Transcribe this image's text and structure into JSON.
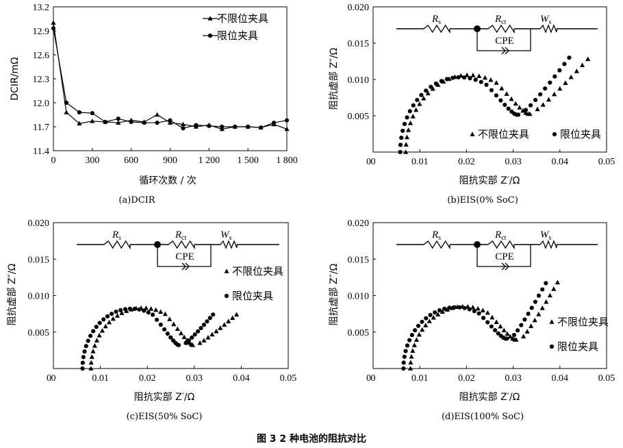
{
  "figure_caption": "图 3   2 种电池的阻抗对比",
  "chart_data": [
    {
      "id": "a",
      "type": "line",
      "caption": "(a)DCIR",
      "xlabel": "循环次数 / 次",
      "ylabel": "DCIR/mΩ",
      "xlim": [
        0,
        1800
      ],
      "ylim": [
        11.4,
        13.2
      ],
      "xticks": [
        0,
        300,
        600,
        900,
        1200,
        1500,
        1800
      ],
      "xtick_labels": [
        "0",
        "300",
        "600",
        "900",
        "1 200",
        "1 500",
        "1 800"
      ],
      "yticks": [
        11.4,
        11.7,
        12.0,
        12.3,
        12.6,
        12.9,
        13.2
      ],
      "ytick_labels": [
        "11.4",
        "11.7",
        "12.0",
        "12.3",
        "12.6",
        "12.9",
        "13.2"
      ],
      "legend_position": "top-right",
      "series": [
        {
          "name": "不限位夹具",
          "marker": "triangle",
          "x": [
            0,
            100,
            200,
            300,
            400,
            500,
            600,
            700,
            800,
            900,
            1000,
            1100,
            1200,
            1300,
            1400,
            1500,
            1600,
            1700,
            1800
          ],
          "y": [
            13.0,
            11.88,
            11.74,
            11.77,
            11.76,
            11.75,
            11.78,
            11.76,
            11.85,
            11.75,
            11.73,
            11.7,
            11.72,
            11.67,
            11.7,
            11.7,
            11.69,
            11.73,
            11.67
          ]
        },
        {
          "name": "限位夹具",
          "marker": "circle",
          "x": [
            0,
            100,
            200,
            300,
            400,
            500,
            600,
            700,
            800,
            900,
            1000,
            1100,
            1200,
            1300,
            1400,
            1500,
            1600,
            1700,
            1800
          ],
          "y": [
            12.93,
            12.0,
            11.88,
            11.87,
            11.76,
            11.8,
            11.76,
            11.75,
            11.75,
            11.78,
            11.68,
            11.72,
            11.71,
            11.7,
            11.7,
            11.7,
            11.69,
            11.75,
            11.78
          ]
        }
      ]
    },
    {
      "id": "b",
      "type": "scatter",
      "caption": "(b)EIS(0% SoC)",
      "xlabel": "阻抗实部 Z′/Ω",
      "ylabel": "阻抗虚部 Z″/Ω",
      "xlim": [
        0,
        0.05
      ],
      "ylim": [
        0,
        0.02
      ],
      "xticks": [
        0,
        0.01,
        0.02,
        0.03,
        0.04,
        0.05
      ],
      "xtick_labels": [
        "0",
        "0.01",
        "0.02",
        "0.03",
        "0.04",
        "0.05"
      ],
      "yticks": [
        0.005,
        0.01,
        0.015,
        0.02
      ],
      "ytick_labels": [
        "0.005",
        "0.010",
        "0.015",
        "0.020"
      ],
      "legend_position": "bottom-right",
      "circuit": {
        "rs": "R",
        "rs_sub": "s",
        "rct": "R",
        "rct_sub": "ct",
        "w": "W",
        "w_sub": "s",
        "cpe": "CPE"
      },
      "series": [
        {
          "name": "不限位夹具",
          "marker": "triangle",
          "x0": 0.007,
          "x1": 0.034,
          "peak": 0.0106,
          "turn": 0.0059,
          "tail_end": [
            0.046,
            0.0128
          ]
        },
        {
          "name": "限位夹具",
          "marker": "circle",
          "x0": 0.0058,
          "x1": 0.0315,
          "peak": 0.0103,
          "turn": 0.0058,
          "tail_end": [
            0.042,
            0.013
          ]
        }
      ]
    },
    {
      "id": "c",
      "type": "scatter",
      "caption": "(c)EIS(50% SoC)",
      "xlabel": "阻抗实部 Z′/Ω",
      "ylabel": "阻抗虚部 Z″/Ω",
      "xlim": [
        0,
        0.05
      ],
      "ylim": [
        0,
        0.02
      ],
      "xticks": [
        0,
        0.01,
        0.02,
        0.03,
        0.04,
        0.05
      ],
      "xtick_labels": [
        "0",
        "0.01",
        "0.02",
        "0.03",
        "0.04",
        "0.05"
      ],
      "yticks": [
        0.005,
        0.01,
        0.015,
        0.02
      ],
      "ytick_labels": [
        "0.005",
        "0.010",
        "0.015",
        "0.020"
      ],
      "legend_position": "right",
      "circuit": {
        "rs": "R",
        "rs_sub": "s",
        "rct": "R",
        "rct_sub": "ct",
        "w": "W",
        "w_sub": "s",
        "cpe": "CPE"
      },
      "series": [
        {
          "name": "不限位夹具",
          "marker": "triangle",
          "x0": 0.008,
          "x1": 0.03,
          "peak": 0.0083,
          "turn": 0.0035,
          "tail_end": [
            0.039,
            0.0074
          ]
        },
        {
          "name": "限位夹具",
          "marker": "circle",
          "x0": 0.0062,
          "x1": 0.027,
          "peak": 0.0082,
          "turn": 0.0035,
          "tail_end": [
            0.034,
            0.0074
          ]
        }
      ]
    },
    {
      "id": "d",
      "type": "scatter",
      "caption": "(d)EIS(100% SoC)",
      "xlabel": "阻抗实部 Z′/Ω",
      "ylabel": "阻抗虚部 Z″/Ω",
      "xlim": [
        0,
        0.05
      ],
      "ylim": [
        0,
        0.02
      ],
      "xticks": [
        0,
        0.01,
        0.02,
        0.03,
        0.04,
        0.05
      ],
      "xtick_labels": [
        "0",
        "0.01",
        "0.02",
        "0.03",
        "0.04",
        "0.05"
      ],
      "yticks": [
        0.005,
        0.01,
        0.015,
        0.02
      ],
      "ytick_labels": [
        "0.005",
        "0.010",
        "0.015",
        "0.020"
      ],
      "legend_position": "right",
      "circuit": {
        "rs": "R",
        "rs_sub": "s",
        "rct": "R",
        "rct_sub": "ct",
        "w": "W",
        "w_sub": "s",
        "cpe": "CPE"
      },
      "series": [
        {
          "name": "不限位夹具",
          "marker": "triangle",
          "x0": 0.008,
          "x1": 0.031,
          "peak": 0.0085,
          "turn": 0.0044,
          "tail_end": [
            0.0395,
            0.0118
          ]
        },
        {
          "name": "限位夹具",
          "marker": "circle",
          "x0": 0.0065,
          "x1": 0.029,
          "peak": 0.0084,
          "turn": 0.0046,
          "tail_end": [
            0.037,
            0.0117
          ]
        }
      ]
    }
  ]
}
